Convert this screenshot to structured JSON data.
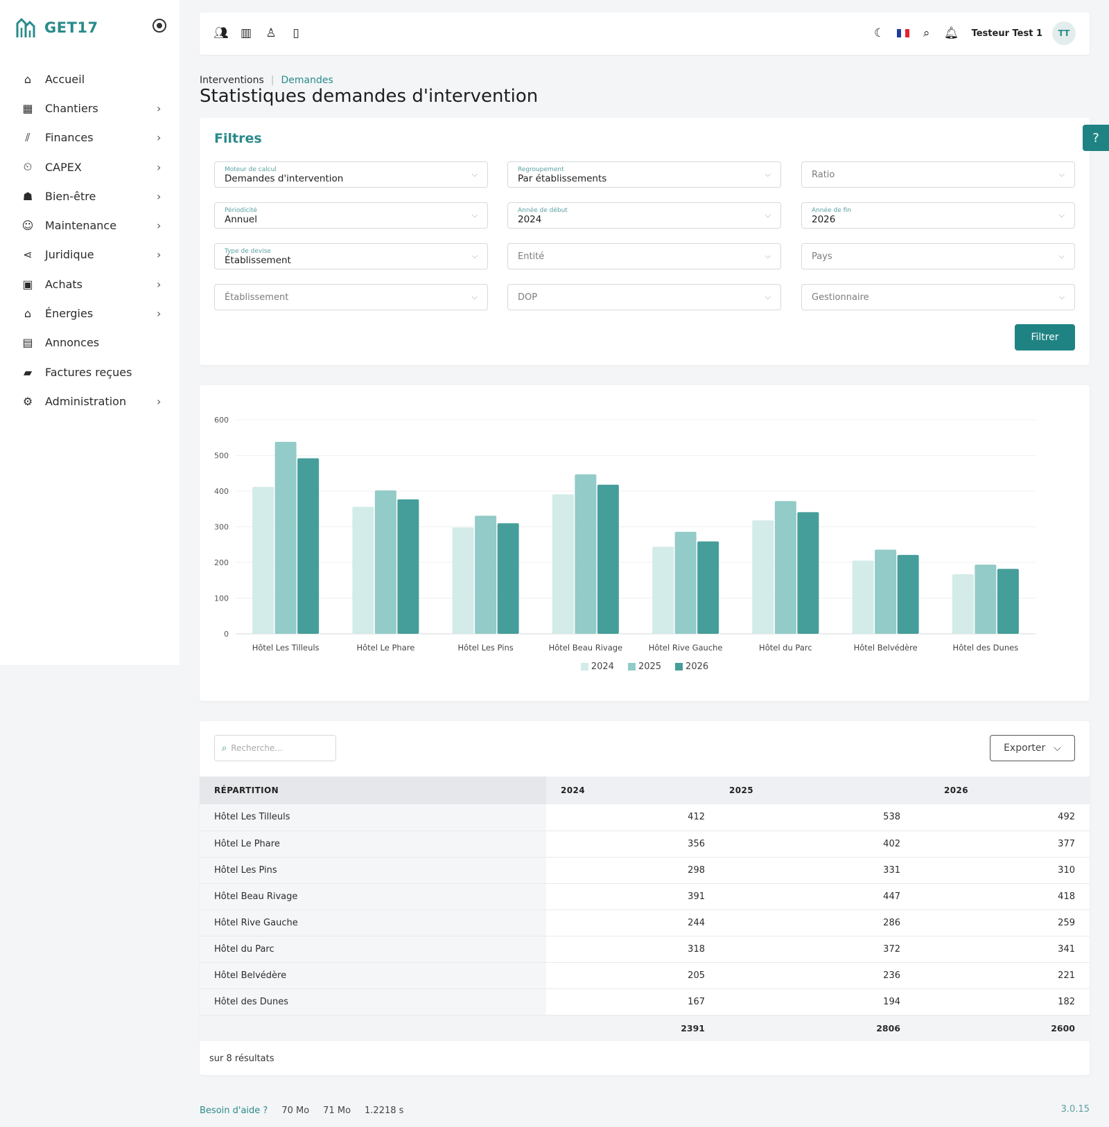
{
  "brand": {
    "name": "GET17"
  },
  "nav": {
    "items": [
      {
        "label": "Accueil",
        "icon": "home-icon",
        "chevron": false
      },
      {
        "label": "Chantiers",
        "icon": "building-icon",
        "chevron": true
      },
      {
        "label": "Finances",
        "icon": "finance-chart-icon",
        "chevron": true
      },
      {
        "label": "CAPEX",
        "icon": "capex-icon",
        "chevron": true
      },
      {
        "label": "Bien-être",
        "icon": "wellbeing-icon",
        "chevron": true
      },
      {
        "label": "Maintenance",
        "icon": "maintenance-icon",
        "chevron": true
      },
      {
        "label": "Juridique",
        "icon": "share-icon",
        "chevron": true
      },
      {
        "label": "Achats",
        "icon": "shopping-bag-icon",
        "chevron": true
      },
      {
        "label": "Énergies",
        "icon": "energy-house-icon",
        "chevron": true
      },
      {
        "label": "Annonces",
        "icon": "store-icon",
        "chevron": false
      },
      {
        "label": "Factures reçues",
        "icon": "invoice-folder-icon",
        "chevron": false
      },
      {
        "label": "Administration",
        "icon": "gear-icon",
        "chevron": true
      }
    ]
  },
  "topbar": {
    "user_name": "Testeur Test 1",
    "avatar_initials": "TT"
  },
  "breadcrumb": {
    "first": "Interventions",
    "second": "Demandes"
  },
  "page_title": "Statistiques demandes d'intervention",
  "filters": {
    "title": "Filtres",
    "fields": [
      {
        "label": "Moteur de calcul",
        "value": "Demandes d'intervention",
        "placeholder": ""
      },
      {
        "label": "Regroupement",
        "value": "Par établissements",
        "placeholder": ""
      },
      {
        "label": "",
        "value": "",
        "placeholder": "Ratio"
      },
      {
        "label": "Périodicité",
        "value": "Annuel",
        "placeholder": ""
      },
      {
        "label": "Année de début",
        "value": "2024",
        "placeholder": ""
      },
      {
        "label": "Année de fin",
        "value": "2026",
        "placeholder": ""
      },
      {
        "label": "Type de devise",
        "value": "Établissement",
        "placeholder": ""
      },
      {
        "label": "",
        "value": "",
        "placeholder": "Entité"
      },
      {
        "label": "",
        "value": "",
        "placeholder": "Pays"
      },
      {
        "label": "",
        "value": "",
        "placeholder": "Établissement"
      },
      {
        "label": "",
        "value": "",
        "placeholder": "DOP"
      },
      {
        "label": "",
        "value": "",
        "placeholder": "Gestionnaire"
      }
    ],
    "button_label": "Filtrer"
  },
  "chart_data": {
    "type": "bar",
    "categories": [
      "Hôtel Les Tilleuls",
      "Hôtel Le Phare",
      "Hôtel Les Pins",
      "Hôtel Beau Rivage",
      "Hôtel Rive Gauche",
      "Hôtel du Parc",
      "Hôtel Belvédère",
      "Hôtel des Dunes"
    ],
    "series": [
      {
        "name": "2024",
        "values": [
          412,
          356,
          298,
          391,
          244,
          318,
          205,
          167
        ],
        "color": "#d3ebe9"
      },
      {
        "name": "2025",
        "values": [
          538,
          402,
          331,
          447,
          286,
          372,
          236,
          194
        ],
        "color": "#92cbc8"
      },
      {
        "name": "2026",
        "values": [
          492,
          377,
          310,
          418,
          259,
          341,
          221,
          182
        ],
        "color": "#469e9a"
      }
    ],
    "ylim": [
      0,
      600
    ],
    "yticks": [
      0,
      100,
      200,
      300,
      400,
      500,
      600
    ],
    "legend": "bottom-center",
    "grid": true
  },
  "table": {
    "search_placeholder": "Recherche...",
    "export_label": "Exporter",
    "headers": [
      "RÉPARTITION",
      "2024",
      "2025",
      "2026"
    ],
    "rows": [
      {
        "name": "Hôtel Les Tilleuls",
        "v2024": "412",
        "v2025": "538",
        "v2026": "492"
      },
      {
        "name": "Hôtel Le Phare",
        "v2024": "356",
        "v2025": "402",
        "v2026": "377"
      },
      {
        "name": "Hôtel Les Pins",
        "v2024": "298",
        "v2025": "331",
        "v2026": "310"
      },
      {
        "name": "Hôtel Beau Rivage",
        "v2024": "391",
        "v2025": "447",
        "v2026": "418"
      },
      {
        "name": "Hôtel Rive Gauche",
        "v2024": "244",
        "v2025": "286",
        "v2026": "259"
      },
      {
        "name": "Hôtel du Parc",
        "v2024": "318",
        "v2025": "372",
        "v2026": "341"
      },
      {
        "name": "Hôtel Belvédère",
        "v2024": "205",
        "v2025": "236",
        "v2026": "221"
      },
      {
        "name": "Hôtel des Dunes",
        "v2024": "167",
        "v2025": "194",
        "v2026": "182"
      }
    ],
    "totals": {
      "v2024": "2391",
      "v2025": "2806",
      "v2026": "2600"
    },
    "results_text": "sur 8 résultats"
  },
  "help_tab": "?",
  "footer": {
    "help_link": "Besoin d'aide ?",
    "mem1": "70 Mo",
    "mem2": "71 Mo",
    "time": "1.2218 s",
    "version": "3.0.15"
  },
  "colors": {
    "accent": "#1f8383",
    "brand": "#2a8a8a"
  }
}
